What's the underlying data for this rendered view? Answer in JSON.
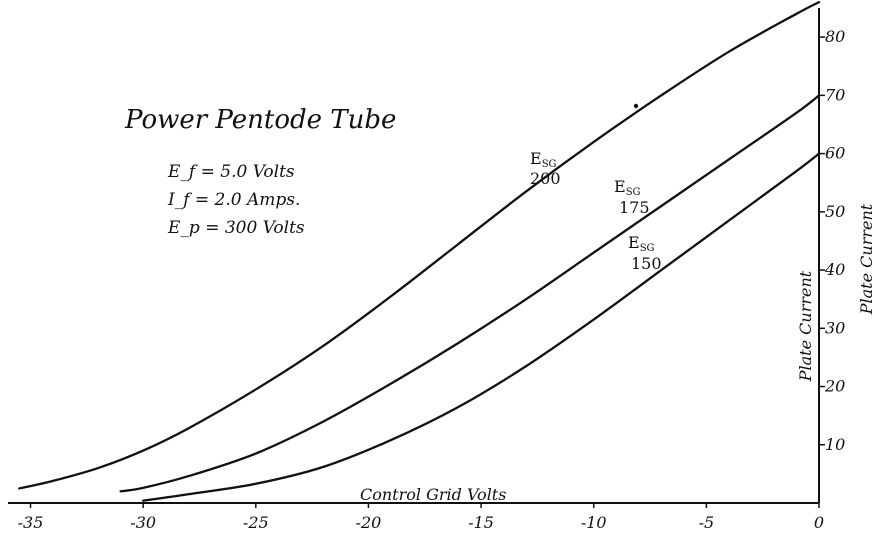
{
  "chart_data": {
    "type": "line",
    "title": "Power Pentode Tube",
    "annotations": [
      "E_f = 5.0 Volts",
      "I_f = 2.0 Amps.",
      "E_p = 300 Volts"
    ],
    "xlabel": "Control Grid Volts",
    "ylabel": "Plate Current",
    "xlim": [
      -36,
      0
    ],
    "ylim": [
      0,
      85
    ],
    "x_ticks": [
      "-35",
      "-30",
      "-25",
      "-20",
      "-15",
      "-10",
      "-5",
      "0"
    ],
    "y_ticks": [
      "10",
      "20",
      "30",
      "40",
      "50",
      "60",
      "70",
      "80"
    ],
    "series": [
      {
        "name": "E_SG 200",
        "label_main": "E",
        "label_sub": "SG",
        "label_num": "200",
        "x": [
          -35.5,
          -34,
          -32,
          -30,
          -28,
          -25,
          -22,
          -19,
          -16,
          -13,
          -10,
          -7,
          -4,
          -1,
          0
        ],
        "y": [
          2.5,
          3.8,
          6,
          9,
          12.8,
          19.5,
          27,
          35.5,
          44.5,
          53.5,
          62,
          70,
          77.5,
          84,
          86
        ]
      },
      {
        "name": "E_SG 175",
        "label_main": "E",
        "label_sub": "SG",
        "label_num": "175",
        "x": [
          -31,
          -30,
          -28,
          -25,
          -22,
          -19,
          -16,
          -13,
          -10,
          -7,
          -4,
          -1,
          0
        ],
        "y": [
          2,
          2.6,
          4.6,
          8.5,
          14,
          20.5,
          27.5,
          35,
          43,
          51,
          59,
          67,
          70
        ]
      },
      {
        "name": "E_SG 150",
        "label_main": "E",
        "label_sub": "SG",
        "label_num": "150",
        "x": [
          -30,
          -28,
          -25,
          -22,
          -19,
          -16,
          -13,
          -10,
          -7,
          -4,
          -1,
          0
        ],
        "y": [
          0.4,
          1.5,
          3.3,
          6.2,
          10.8,
          16.5,
          23.5,
          31.5,
          40,
          48.5,
          57,
          60
        ]
      }
    ],
    "grid": false,
    "line_color": "#111111"
  }
}
